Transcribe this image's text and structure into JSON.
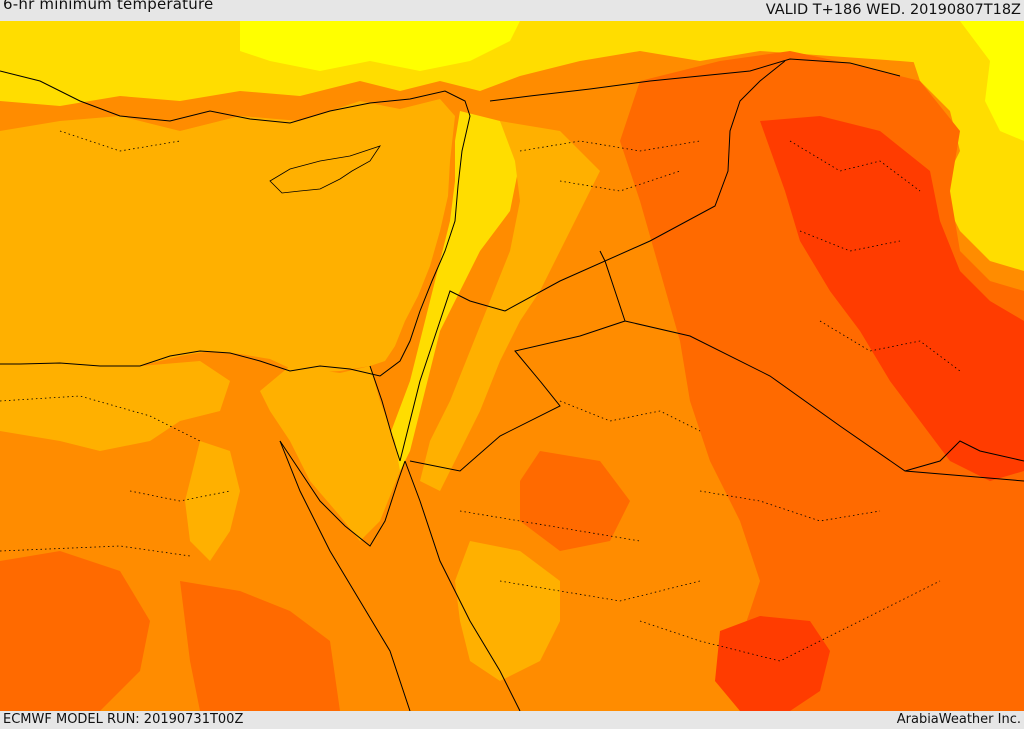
{
  "header": {
    "title": "6-hr minimum temperature",
    "valid_label": "VALID T+186 WED. 20190807T18Z"
  },
  "footer": {
    "model_run": "ECMWF MODEL RUN: 20190731T00Z",
    "credit": "ArabiaWeather Inc."
  },
  "palette": {
    "yellow": "#ffff00",
    "light_yellow_orange": "#ffdd00",
    "light_orange": "#ffb000",
    "orange": "#ff8c00",
    "dark_orange": "#ff6a00",
    "red_orange": "#ff3c00",
    "border_line": "#000000"
  }
}
